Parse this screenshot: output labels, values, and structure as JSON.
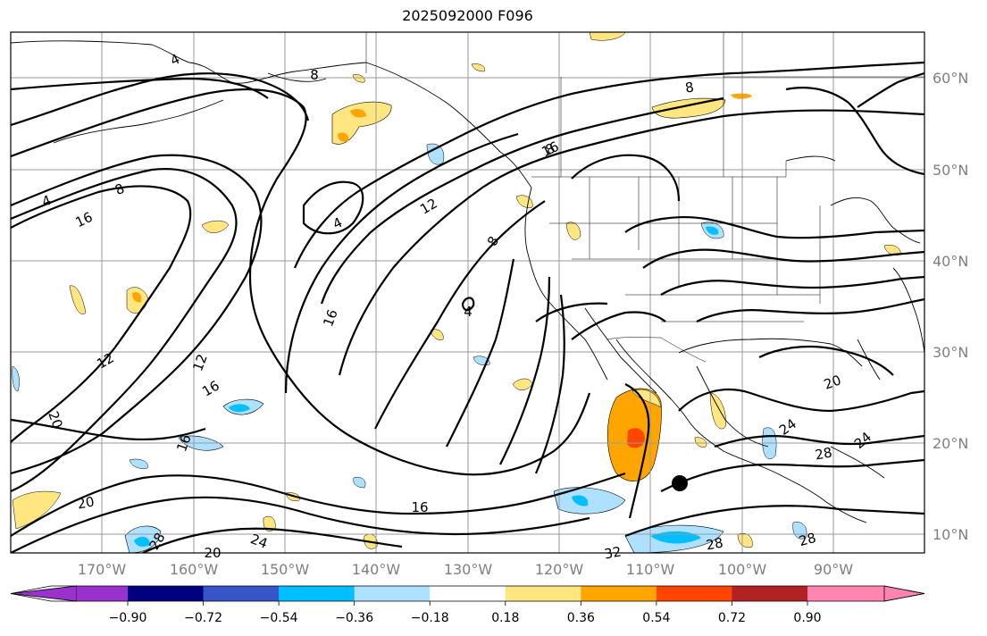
{
  "title": "2025092000 F096",
  "lon_labels": [
    "170°W",
    "160°W",
    "150°W",
    "140°W",
    "130°W",
    "120°W",
    "110°W",
    "100°W",
    "90°W"
  ],
  "lat_labels": [
    "60°N",
    "50°N",
    "40°N",
    "30°N",
    "20°N",
    "10°N"
  ],
  "contour_labels": [
    {
      "text": "4"
    },
    {
      "text": "4"
    },
    {
      "text": "8"
    },
    {
      "text": "8"
    },
    {
      "text": "16"
    },
    {
      "text": "12"
    },
    {
      "text": "4"
    },
    {
      "text": "12"
    },
    {
      "text": "16"
    },
    {
      "text": "8"
    },
    {
      "text": "16"
    },
    {
      "text": "8"
    },
    {
      "text": "8"
    },
    {
      "text": "4"
    },
    {
      "text": "12"
    },
    {
      "text": "16"
    },
    {
      "text": "16"
    },
    {
      "text": "20"
    },
    {
      "text": "16"
    },
    {
      "text": "20"
    },
    {
      "text": "20"
    },
    {
      "text": "24"
    },
    {
      "text": "28"
    },
    {
      "text": "24"
    },
    {
      "text": "28"
    },
    {
      "text": "28"
    },
    {
      "text": "28"
    },
    {
      "text": "32"
    },
    {
      "text": "20"
    },
    {
      "text": "24"
    }
  ],
  "colorbar": {
    "ticks": [
      "−0.90",
      "−0.72",
      "−0.54",
      "−0.36",
      "−0.18",
      "0.18",
      "0.36",
      "0.54",
      "0.72",
      "0.90"
    ],
    "colors": [
      "#9932cc",
      "#000080",
      "#3655c9",
      "#00bfff",
      "#aee0ff",
      "#ffffff",
      "#ffe680",
      "#ffa500",
      "#ff4500",
      "#b22222",
      "#ff85b0"
    ]
  },
  "marker": {
    "label": "storm-center"
  }
}
